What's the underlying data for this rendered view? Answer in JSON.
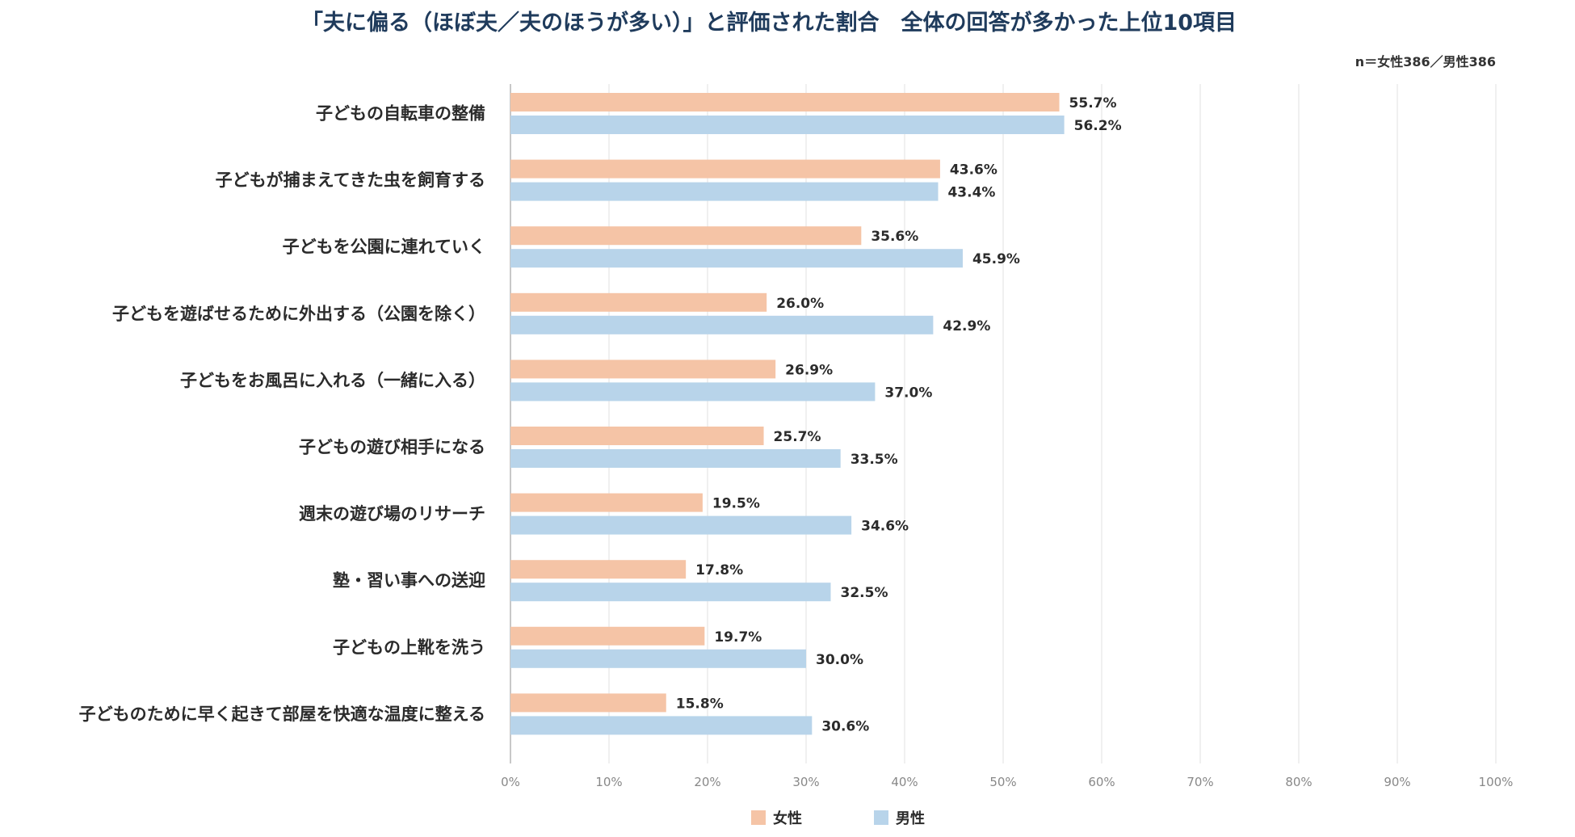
{
  "chart_data": {
    "type": "bar",
    "orientation": "horizontal",
    "title": "「夫に偏る（ほぼ夫／夫のほうが多い）」と評価された割合　全体の回答が多かった上位10項目",
    "subtitle": "n＝女性386／男性386",
    "categories": [
      "子どもの自転車の整備",
      "子どもが捕まえてきた虫を飼育する",
      "子どもを公園に連れていく",
      "子どもを遊ばせるために外出する（公園を除く）",
      "子どもをお風呂に入れる（一緒に入る）",
      "子どもの遊び相手になる",
      "週末の遊び場のリサーチ",
      "塾・習い事への送迎",
      "子どもの上靴を洗う",
      "子どものために早く起きて部屋を快適な温度に整える"
    ],
    "series": [
      {
        "name": "女性",
        "color": "#f5c4a6",
        "values": [
          55.7,
          43.6,
          35.6,
          26.0,
          26.9,
          25.7,
          19.5,
          17.8,
          19.7,
          15.8
        ],
        "labels": [
          "55.7%",
          "43.6%",
          "35.6%",
          "26.0%",
          "26.9%",
          "25.7%",
          "19.5%",
          "17.8%",
          "19.7%",
          "15.8%"
        ]
      },
      {
        "name": "男性",
        "color": "#b8d4ea",
        "values": [
          56.2,
          43.4,
          45.9,
          42.9,
          37.0,
          33.5,
          34.6,
          32.5,
          30.0,
          30.6
        ],
        "labels": [
          "56.2%",
          "43.4%",
          "45.9%",
          "42.9%",
          "37.0%",
          "33.5%",
          "34.6%",
          "32.5%",
          "30.0%",
          "30.6%"
        ]
      }
    ],
    "xlim": [
      0,
      100
    ],
    "xticks": [
      "0%",
      "10%",
      "20%",
      "30%",
      "40%",
      "50%",
      "60%",
      "70%",
      "80%",
      "90%",
      "100%"
    ],
    "grid": true,
    "legend_position": "bottom-center",
    "title_color": "#1f3b5c",
    "label_color": "#2b2b2b",
    "tick_color": "#888888",
    "grid_color": "#e6e6e6"
  }
}
